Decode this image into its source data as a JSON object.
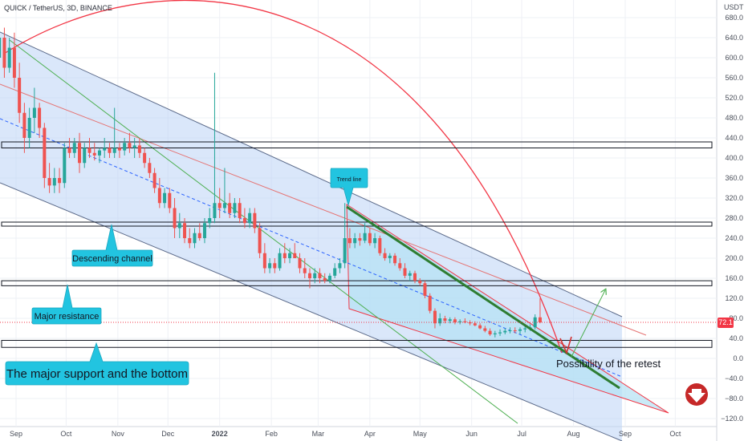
{
  "header": {
    "symbol": "QUICK / TetherUS, 3D, BINANCE",
    "currency": "USDT"
  },
  "price_badge": {
    "value": "72.1",
    "price": 72.1,
    "color": "#f23645"
  },
  "colors": {
    "up": "#26a69a",
    "down": "#ef5350",
    "channel": "#2962ff",
    "arc": "#f23645",
    "trend": "#2e7d32",
    "callout": "#22c4e0"
  },
  "callouts": {
    "trend_line": "Trend line",
    "descending_channel": "Descending channel",
    "major_resistance": "Major resistance",
    "support": "The major support and the bottom",
    "retest": "Possibility of the retest"
  },
  "chart_data": {
    "type": "candlestick",
    "y_axis": {
      "min": -130,
      "max": 700,
      "ticks": [
        680,
        640,
        600,
        560,
        520,
        480,
        440,
        400,
        360,
        320,
        280,
        240,
        200,
        160,
        120,
        80,
        40,
        0,
        -40,
        -80,
        -120
      ]
    },
    "x_axis": {
      "ticks": [
        {
          "label": "Sep",
          "date": "2021-09-01"
        },
        {
          "label": "Oct",
          "date": "2021-10-01"
        },
        {
          "label": "Nov",
          "date": "2021-11-01"
        },
        {
          "label": "Dec",
          "date": "2021-12-01"
        },
        {
          "label": "2022",
          "date": "2022-01-01"
        },
        {
          "label": "Feb",
          "date": "2022-02-01"
        },
        {
          "label": "Mar",
          "date": "2022-03-01"
        },
        {
          "label": "Apr",
          "date": "2022-04-01"
        },
        {
          "label": "May",
          "date": "2022-05-01"
        },
        {
          "label": "Jun",
          "date": "2022-06-01"
        },
        {
          "label": "Jul",
          "date": "2022-07-01"
        },
        {
          "label": "Aug",
          "date": "2022-08-01"
        },
        {
          "label": "Sep",
          "date": "2022-09-01"
        },
        {
          "label": "Oct",
          "date": "2022-10-01"
        }
      ]
    },
    "zones": [
      {
        "name": "resistance-zone-upper",
        "top": 432,
        "bottom": 420
      },
      {
        "name": "resistance-zone-middle",
        "top": 272,
        "bottom": 264
      },
      {
        "name": "major-resistance-zone",
        "top": 155,
        "bottom": 145
      },
      {
        "name": "major-support-zone",
        "top": 36,
        "bottom": 22
      }
    ],
    "candles": [
      {
        "date": "2021-08-22",
        "o": 600,
        "h": 670,
        "l": 560,
        "c": 640
      },
      {
        "date": "2021-08-25",
        "o": 640,
        "h": 660,
        "l": 560,
        "c": 580
      },
      {
        "date": "2021-08-28",
        "o": 580,
        "h": 640,
        "l": 570,
        "c": 620
      },
      {
        "date": "2021-08-31",
        "o": 620,
        "h": 650,
        "l": 540,
        "c": 560
      },
      {
        "date": "2021-09-03",
        "o": 560,
        "h": 590,
        "l": 470,
        "c": 490
      },
      {
        "date": "2021-09-06",
        "o": 490,
        "h": 510,
        "l": 410,
        "c": 440
      },
      {
        "date": "2021-09-09",
        "o": 440,
        "h": 500,
        "l": 420,
        "c": 480
      },
      {
        "date": "2021-09-12",
        "o": 480,
        "h": 540,
        "l": 450,
        "c": 500
      },
      {
        "date": "2021-09-15",
        "o": 500,
        "h": 510,
        "l": 440,
        "c": 460
      },
      {
        "date": "2021-09-18",
        "o": 460,
        "h": 470,
        "l": 340,
        "c": 360
      },
      {
        "date": "2021-09-21",
        "o": 360,
        "h": 390,
        "l": 330,
        "c": 345
      },
      {
        "date": "2021-09-24",
        "o": 345,
        "h": 380,
        "l": 330,
        "c": 360
      },
      {
        "date": "2021-09-27",
        "o": 360,
        "h": 380,
        "l": 330,
        "c": 350
      },
      {
        "date": "2021-09-30",
        "o": 350,
        "h": 430,
        "l": 340,
        "c": 420
      },
      {
        "date": "2021-10-03",
        "o": 420,
        "h": 440,
        "l": 400,
        "c": 410
      },
      {
        "date": "2021-10-06",
        "o": 410,
        "h": 440,
        "l": 400,
        "c": 430
      },
      {
        "date": "2021-10-09",
        "o": 430,
        "h": 450,
        "l": 370,
        "c": 390
      },
      {
        "date": "2021-10-12",
        "o": 390,
        "h": 430,
        "l": 380,
        "c": 420
      },
      {
        "date": "2021-10-15",
        "o": 420,
        "h": 440,
        "l": 400,
        "c": 410
      },
      {
        "date": "2021-10-18",
        "o": 410,
        "h": 430,
        "l": 395,
        "c": 405
      },
      {
        "date": "2021-10-21",
        "o": 405,
        "h": 420,
        "l": 390,
        "c": 415
      },
      {
        "date": "2021-10-24",
        "o": 415,
        "h": 440,
        "l": 400,
        "c": 420
      },
      {
        "date": "2021-10-27",
        "o": 420,
        "h": 430,
        "l": 400,
        "c": 410
      },
      {
        "date": "2021-10-30",
        "o": 410,
        "h": 500,
        "l": 400,
        "c": 420
      },
      {
        "date": "2021-11-02",
        "o": 420,
        "h": 430,
        "l": 400,
        "c": 415
      },
      {
        "date": "2021-11-05",
        "o": 415,
        "h": 440,
        "l": 405,
        "c": 430
      },
      {
        "date": "2021-11-08",
        "o": 430,
        "h": 450,
        "l": 410,
        "c": 420
      },
      {
        "date": "2021-11-11",
        "o": 420,
        "h": 440,
        "l": 400,
        "c": 425
      },
      {
        "date": "2021-11-14",
        "o": 425,
        "h": 440,
        "l": 400,
        "c": 410
      },
      {
        "date": "2021-11-17",
        "o": 410,
        "h": 420,
        "l": 380,
        "c": 390
      },
      {
        "date": "2021-11-20",
        "o": 390,
        "h": 400,
        "l": 360,
        "c": 370
      },
      {
        "date": "2021-11-23",
        "o": 370,
        "h": 380,
        "l": 330,
        "c": 340
      },
      {
        "date": "2021-11-26",
        "o": 340,
        "h": 360,
        "l": 300,
        "c": 310
      },
      {
        "date": "2021-11-29",
        "o": 310,
        "h": 340,
        "l": 300,
        "c": 330
      },
      {
        "date": "2021-12-02",
        "o": 330,
        "h": 340,
        "l": 290,
        "c": 300
      },
      {
        "date": "2021-12-05",
        "o": 300,
        "h": 320,
        "l": 240,
        "c": 260
      },
      {
        "date": "2021-12-08",
        "o": 260,
        "h": 290,
        "l": 240,
        "c": 270
      },
      {
        "date": "2021-12-11",
        "o": 270,
        "h": 280,
        "l": 230,
        "c": 240
      },
      {
        "date": "2021-12-14",
        "o": 240,
        "h": 260,
        "l": 220,
        "c": 230
      },
      {
        "date": "2021-12-17",
        "o": 230,
        "h": 260,
        "l": 220,
        "c": 250
      },
      {
        "date": "2021-12-20",
        "o": 250,
        "h": 270,
        "l": 235,
        "c": 240
      },
      {
        "date": "2021-12-23",
        "o": 240,
        "h": 280,
        "l": 230,
        "c": 270
      },
      {
        "date": "2021-12-26",
        "o": 270,
        "h": 300,
        "l": 260,
        "c": 280
      },
      {
        "date": "2021-12-29",
        "o": 280,
        "h": 570,
        "l": 270,
        "c": 310
      },
      {
        "date": "2022-01-01",
        "o": 310,
        "h": 340,
        "l": 280,
        "c": 300
      },
      {
        "date": "2022-01-04",
        "o": 300,
        "h": 380,
        "l": 290,
        "c": 310
      },
      {
        "date": "2022-01-07",
        "o": 310,
        "h": 330,
        "l": 280,
        "c": 290
      },
      {
        "date": "2022-01-10",
        "o": 290,
        "h": 320,
        "l": 280,
        "c": 310
      },
      {
        "date": "2022-01-13",
        "o": 310,
        "h": 320,
        "l": 270,
        "c": 280
      },
      {
        "date": "2022-01-16",
        "o": 280,
        "h": 300,
        "l": 260,
        "c": 270
      },
      {
        "date": "2022-01-19",
        "o": 270,
        "h": 300,
        "l": 260,
        "c": 290
      },
      {
        "date": "2022-01-22",
        "o": 290,
        "h": 300,
        "l": 250,
        "c": 260
      },
      {
        "date": "2022-01-25",
        "o": 260,
        "h": 270,
        "l": 200,
        "c": 210
      },
      {
        "date": "2022-01-28",
        "o": 210,
        "h": 230,
        "l": 170,
        "c": 180
      },
      {
        "date": "2022-01-31",
        "o": 180,
        "h": 200,
        "l": 170,
        "c": 190
      },
      {
        "date": "2022-02-03",
        "o": 190,
        "h": 200,
        "l": 170,
        "c": 180
      },
      {
        "date": "2022-02-06",
        "o": 180,
        "h": 220,
        "l": 175,
        "c": 210
      },
      {
        "date": "2022-02-09",
        "o": 210,
        "h": 230,
        "l": 190,
        "c": 200
      },
      {
        "date": "2022-02-12",
        "o": 200,
        "h": 220,
        "l": 190,
        "c": 210
      },
      {
        "date": "2022-02-15",
        "o": 210,
        "h": 230,
        "l": 200,
        "c": 200
      },
      {
        "date": "2022-02-18",
        "o": 200,
        "h": 210,
        "l": 170,
        "c": 180
      },
      {
        "date": "2022-02-21",
        "o": 180,
        "h": 200,
        "l": 160,
        "c": 170
      },
      {
        "date": "2022-02-24",
        "o": 170,
        "h": 180,
        "l": 140,
        "c": 160
      },
      {
        "date": "2022-02-27",
        "o": 160,
        "h": 180,
        "l": 150,
        "c": 170
      },
      {
        "date": "2022-03-02",
        "o": 170,
        "h": 180,
        "l": 150,
        "c": 160
      },
      {
        "date": "2022-03-05",
        "o": 160,
        "h": 170,
        "l": 150,
        "c": 155
      },
      {
        "date": "2022-03-08",
        "o": 155,
        "h": 170,
        "l": 150,
        "c": 165
      },
      {
        "date": "2022-03-11",
        "o": 165,
        "h": 190,
        "l": 160,
        "c": 180
      },
      {
        "date": "2022-03-14",
        "o": 180,
        "h": 200,
        "l": 170,
        "c": 190
      },
      {
        "date": "2022-03-17",
        "o": 190,
        "h": 310,
        "l": 180,
        "c": 240
      },
      {
        "date": "2022-03-20",
        "o": 240,
        "h": 260,
        "l": 220,
        "c": 230
      },
      {
        "date": "2022-03-23",
        "o": 230,
        "h": 250,
        "l": 220,
        "c": 240
      },
      {
        "date": "2022-03-26",
        "o": 240,
        "h": 250,
        "l": 225,
        "c": 235
      },
      {
        "date": "2022-03-29",
        "o": 235,
        "h": 270,
        "l": 230,
        "c": 250
      },
      {
        "date": "2022-04-01",
        "o": 250,
        "h": 260,
        "l": 225,
        "c": 230
      },
      {
        "date": "2022-04-04",
        "o": 230,
        "h": 250,
        "l": 220,
        "c": 240
      },
      {
        "date": "2022-04-07",
        "o": 240,
        "h": 245,
        "l": 205,
        "c": 210
      },
      {
        "date": "2022-04-10",
        "o": 210,
        "h": 220,
        "l": 195,
        "c": 200
      },
      {
        "date": "2022-04-13",
        "o": 200,
        "h": 210,
        "l": 190,
        "c": 205
      },
      {
        "date": "2022-04-16",
        "o": 205,
        "h": 210,
        "l": 185,
        "c": 190
      },
      {
        "date": "2022-04-19",
        "o": 190,
        "h": 200,
        "l": 175,
        "c": 180
      },
      {
        "date": "2022-04-22",
        "o": 180,
        "h": 190,
        "l": 160,
        "c": 165
      },
      {
        "date": "2022-04-25",
        "o": 165,
        "h": 175,
        "l": 155,
        "c": 170
      },
      {
        "date": "2022-04-28",
        "o": 170,
        "h": 175,
        "l": 150,
        "c": 155
      },
      {
        "date": "2022-05-01",
        "o": 155,
        "h": 160,
        "l": 145,
        "c": 150
      },
      {
        "date": "2022-05-04",
        "o": 150,
        "h": 155,
        "l": 120,
        "c": 125
      },
      {
        "date": "2022-05-07",
        "o": 125,
        "h": 130,
        "l": 90,
        "c": 95
      },
      {
        "date": "2022-05-10",
        "o": 95,
        "h": 100,
        "l": 60,
        "c": 70
      },
      {
        "date": "2022-05-13",
        "o": 70,
        "h": 90,
        "l": 65,
        "c": 80
      },
      {
        "date": "2022-05-16",
        "o": 80,
        "h": 85,
        "l": 70,
        "c": 75
      },
      {
        "date": "2022-05-19",
        "o": 75,
        "h": 82,
        "l": 70,
        "c": 78
      },
      {
        "date": "2022-05-22",
        "o": 78,
        "h": 82,
        "l": 68,
        "c": 72
      },
      {
        "date": "2022-05-25",
        "o": 72,
        "h": 78,
        "l": 68,
        "c": 74
      },
      {
        "date": "2022-05-28",
        "o": 74,
        "h": 80,
        "l": 70,
        "c": 72
      },
      {
        "date": "2022-05-31",
        "o": 72,
        "h": 76,
        "l": 66,
        "c": 70
      },
      {
        "date": "2022-06-03",
        "o": 70,
        "h": 74,
        "l": 64,
        "c": 66
      },
      {
        "date": "2022-06-06",
        "o": 66,
        "h": 70,
        "l": 58,
        "c": 60
      },
      {
        "date": "2022-06-09",
        "o": 60,
        "h": 65,
        "l": 52,
        "c": 55
      },
      {
        "date": "2022-06-12",
        "o": 55,
        "h": 60,
        "l": 45,
        "c": 48
      },
      {
        "date": "2022-06-15",
        "o": 48,
        "h": 55,
        "l": 42,
        "c": 50
      },
      {
        "date": "2022-06-18",
        "o": 50,
        "h": 58,
        "l": 45,
        "c": 52
      },
      {
        "date": "2022-06-21",
        "o": 52,
        "h": 60,
        "l": 48,
        "c": 55
      },
      {
        "date": "2022-06-24",
        "o": 55,
        "h": 62,
        "l": 50,
        "c": 56
      },
      {
        "date": "2022-06-27",
        "o": 56,
        "h": 62,
        "l": 50,
        "c": 55
      },
      {
        "date": "2022-06-30",
        "o": 55,
        "h": 62,
        "l": 48,
        "c": 58
      },
      {
        "date": "2022-07-03",
        "o": 58,
        "h": 64,
        "l": 52,
        "c": 60
      },
      {
        "date": "2022-07-06",
        "o": 60,
        "h": 68,
        "l": 55,
        "c": 62
      },
      {
        "date": "2022-07-09",
        "o": 62,
        "h": 88,
        "l": 58,
        "c": 82
      },
      {
        "date": "2022-07-12",
        "o": 82,
        "h": 120,
        "l": 70,
        "c": 72
      }
    ]
  }
}
